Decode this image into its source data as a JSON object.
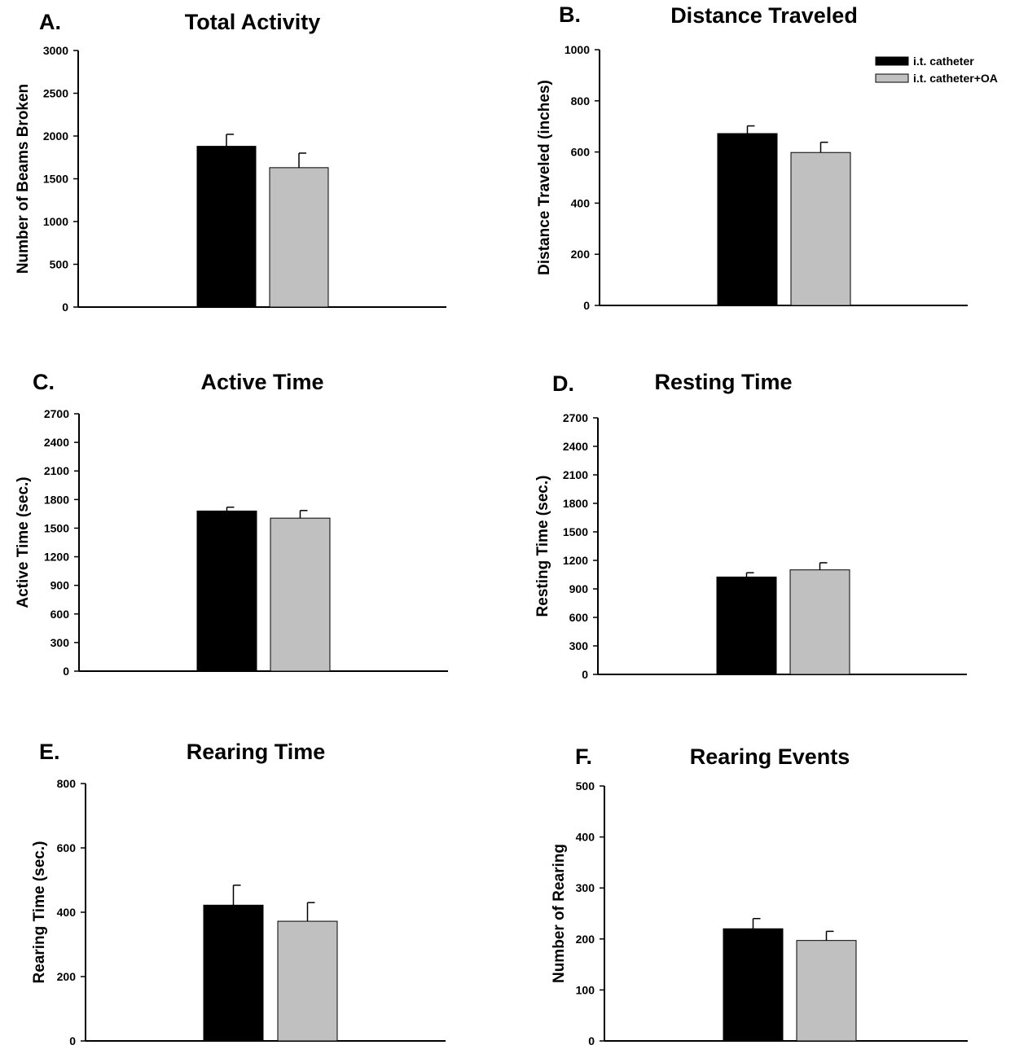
{
  "legend": {
    "items": [
      {
        "label": "i.t. catheter",
        "color": "#000000"
      },
      {
        "label": "i.t. catheter+OA",
        "color": "#c0c0c0"
      }
    ]
  },
  "chart_data": [
    {
      "panel": "A.",
      "type": "bar",
      "title": "Total Activity",
      "ylabel": "Number of Beams Broken",
      "ylim": [
        0,
        3000
      ],
      "yticks": [
        0,
        500,
        1000,
        1500,
        2000,
        2500,
        3000
      ],
      "series": [
        {
          "name": "i.t. catheter",
          "value": 1880,
          "error": 140
        },
        {
          "name": "i.t. catheter+OA",
          "value": 1630,
          "error": 170
        }
      ]
    },
    {
      "panel": "B.",
      "type": "bar",
      "title": "Distance Traveled",
      "ylabel": "Distance Traveled (inches)",
      "ylim": [
        0,
        1000
      ],
      "yticks": [
        0,
        200,
        400,
        600,
        800,
        1000
      ],
      "series": [
        {
          "name": "i.t. catheter",
          "value": 672,
          "error": 30
        },
        {
          "name": "i.t. catheter+OA",
          "value": 598,
          "error": 40
        }
      ]
    },
    {
      "panel": "C.",
      "type": "bar",
      "title": "Active Time",
      "ylabel": "Active Time (sec.)",
      "ylim": [
        0,
        2700
      ],
      "yticks": [
        0,
        300,
        600,
        900,
        1200,
        1500,
        1800,
        2100,
        2400,
        2700
      ],
      "series": [
        {
          "name": "i.t. catheter",
          "value": 1680,
          "error": 40
        },
        {
          "name": "i.t. catheter+OA",
          "value": 1605,
          "error": 80
        }
      ]
    },
    {
      "panel": "D.",
      "type": "bar",
      "title": "Resting Time",
      "ylabel": "Resting Time (sec.)",
      "ylim": [
        0,
        2700
      ],
      "yticks": [
        0,
        300,
        600,
        900,
        1200,
        1500,
        1800,
        2100,
        2400,
        2700
      ],
      "series": [
        {
          "name": "i.t. catheter",
          "value": 1025,
          "error": 45
        },
        {
          "name": "i.t. catheter+OA",
          "value": 1100,
          "error": 75
        }
      ]
    },
    {
      "panel": "E.",
      "type": "bar",
      "title": "Rearing Time",
      "ylabel": "Rearing Time (sec.)",
      "ylim": [
        0,
        800
      ],
      "yticks": [
        0,
        200,
        400,
        600,
        800
      ],
      "series": [
        {
          "name": "i.t. catheter",
          "value": 422,
          "error": 62
        },
        {
          "name": "i.t. catheter+OA",
          "value": 372,
          "error": 58
        }
      ]
    },
    {
      "panel": "F.",
      "type": "bar",
      "title": "Rearing Events",
      "ylabel": "Number of Rearing",
      "ylim": [
        0,
        500
      ],
      "yticks": [
        0,
        100,
        200,
        300,
        400,
        500
      ],
      "series": [
        {
          "name": "i.t. catheter",
          "value": 220,
          "error": 20
        },
        {
          "name": "i.t. catheter+OA",
          "value": 197,
          "error": 18
        }
      ]
    }
  ]
}
